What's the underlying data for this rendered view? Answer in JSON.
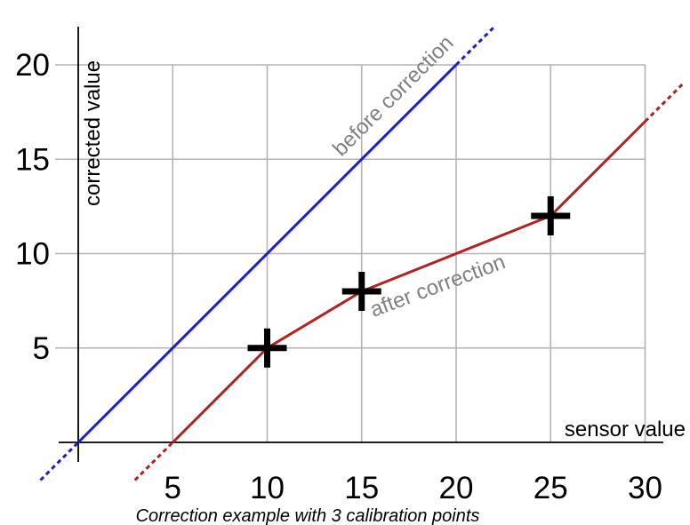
{
  "chart_data": {
    "type": "line",
    "title": "",
    "caption": "Correction example with 3 calibration points",
    "xlabel": "sensor value",
    "ylabel": "corrected value",
    "xlim": [
      0,
      31
    ],
    "ylim": [
      -1,
      22
    ],
    "grid": true,
    "x_ticks": [
      5,
      10,
      15,
      20,
      25,
      30
    ],
    "y_ticks": [
      5,
      10,
      15,
      20
    ],
    "series": [
      {
        "key": "before",
        "annotation": "before correction",
        "color": "#1f1fc8",
        "solid": {
          "x": [
            0,
            20
          ],
          "y": [
            0,
            20
          ]
        },
        "extrapolated_low": {
          "x": [
            -2,
            0
          ],
          "y": [
            -2,
            0
          ]
        },
        "extrapolated_high": {
          "x": [
            20,
            22
          ],
          "y": [
            20,
            22
          ]
        }
      },
      {
        "key": "after",
        "annotation": "after correction",
        "color": "#b22222",
        "solid": {
          "x": [
            5,
            10,
            15,
            25,
            30
          ],
          "y": [
            0,
            5,
            8,
            12,
            17
          ]
        },
        "extrapolated_low": {
          "x": [
            3,
            5
          ],
          "y": [
            -2,
            0
          ]
        },
        "extrapolated_high": {
          "x": [
            30,
            32
          ],
          "y": [
            17,
            19
          ]
        }
      }
    ],
    "calibration_points": [
      {
        "x": 10,
        "y": 5
      },
      {
        "x": 15,
        "y": 8
      },
      {
        "x": 25,
        "y": 12
      }
    ]
  }
}
